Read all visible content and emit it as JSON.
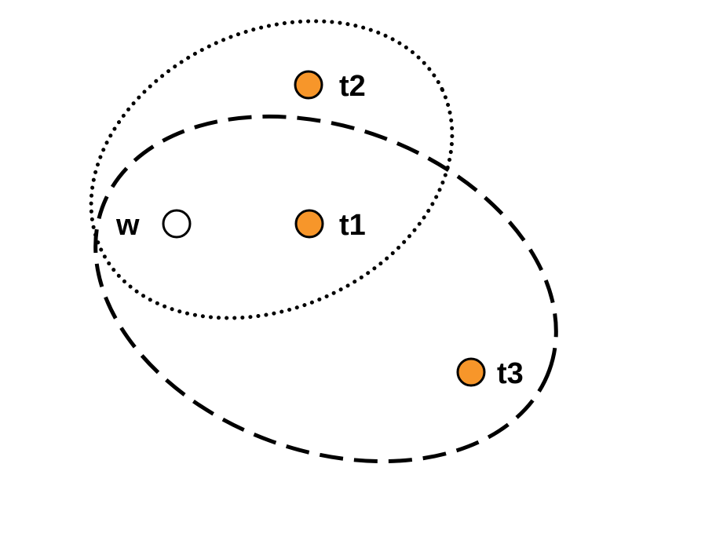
{
  "colors": {
    "background": "#ffffff",
    "stroke": "#000000",
    "filled_node": "#f7962a",
    "empty_node": "#ffffff"
  },
  "nodes": {
    "w": {
      "label": "w",
      "style": "empty"
    },
    "t1": {
      "label": "t1",
      "style": "filled"
    },
    "t2": {
      "label": "t2",
      "style": "filled"
    },
    "t3": {
      "label": "t3",
      "style": "filled"
    }
  },
  "groups": {
    "dotted": {
      "line_style": "dotted",
      "members": [
        "w",
        "t1",
        "t2"
      ]
    },
    "dashed": {
      "line_style": "dashed",
      "members": [
        "w",
        "t1",
        "t3"
      ]
    }
  }
}
